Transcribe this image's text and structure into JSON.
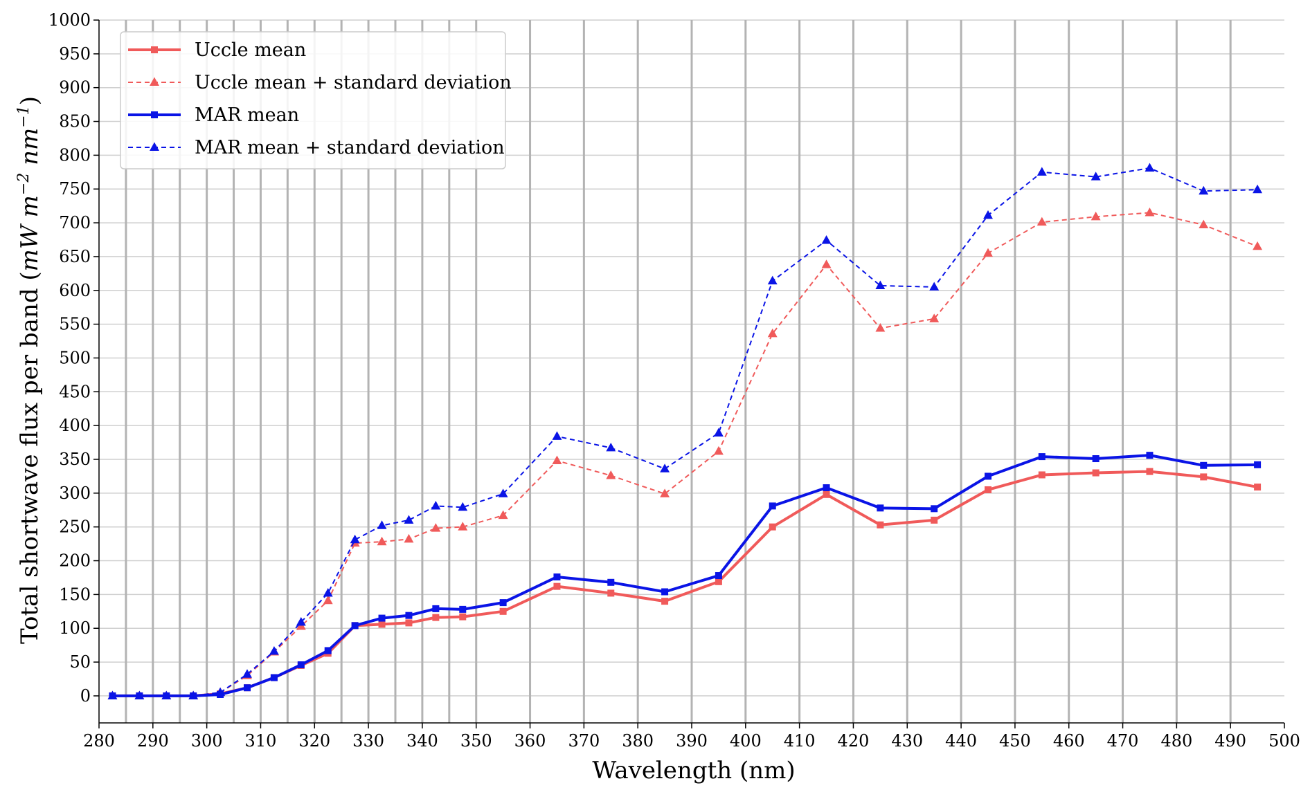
{
  "chart_data": {
    "type": "line",
    "xlabel": "Wavelength (nm)",
    "ylabel": "Total shortwave flux per band (mW m^-2 nm^-1)",
    "ylabel_parts": {
      "prefix": "Total shortwave flux per band (",
      "m1": "mW m",
      "e1": "−2",
      "m2": " nm",
      "e2": "−1",
      "suffix": ")"
    },
    "xlim": [
      280,
      500
    ],
    "ylim": [
      -40,
      1000
    ],
    "x_ticks": [
      280,
      290,
      300,
      310,
      320,
      330,
      340,
      350,
      360,
      370,
      380,
      390,
      400,
      410,
      420,
      430,
      440,
      450,
      460,
      470,
      480,
      490,
      500
    ],
    "y_ticks": [
      0,
      50,
      100,
      150,
      200,
      250,
      300,
      350,
      400,
      450,
      500,
      550,
      600,
      650,
      700,
      750,
      800,
      850,
      900,
      950,
      1000
    ],
    "band_edges": [
      285,
      290,
      295,
      300,
      305,
      310,
      315,
      320,
      325,
      330,
      335,
      340,
      345,
      350,
      360,
      370,
      380,
      390,
      400,
      410,
      420,
      430,
      440,
      450,
      460,
      470,
      480,
      490
    ],
    "grid": true,
    "legend_position": "top-left",
    "x": [
      282.5,
      287.5,
      292.5,
      297.5,
      302.5,
      307.5,
      312.5,
      317.5,
      322.5,
      327.5,
      332.5,
      337.5,
      342.5,
      347.5,
      355,
      365,
      375,
      385,
      395,
      405,
      415,
      425,
      435,
      445,
      455,
      465,
      475,
      485,
      495
    ],
    "series": [
      {
        "name": "Uccle mean",
        "color": "#f05a5a",
        "style": "solid",
        "marker": "square",
        "values": [
          0,
          0,
          0,
          0,
          3,
          12,
          27,
          45,
          63,
          104,
          106,
          108,
          116,
          117,
          125,
          162,
          152,
          140,
          169,
          250,
          298,
          253,
          260,
          305,
          327,
          330,
          332,
          324,
          309
        ]
      },
      {
        "name": "Uccle mean + standard deviation",
        "color": "#f05a5a",
        "style": "dashed",
        "marker": "triangle",
        "values": [
          0,
          0,
          0,
          0,
          5,
          30,
          65,
          103,
          141,
          226,
          228,
          232,
          248,
          250,
          267,
          348,
          326,
          299,
          362,
          536,
          638,
          544,
          558,
          655,
          701,
          709,
          715,
          697,
          665
        ]
      },
      {
        "name": "MAR mean",
        "color": "#0a14e6",
        "style": "solid",
        "marker": "square",
        "values": [
          0,
          0,
          0,
          0,
          2,
          12,
          27,
          46,
          67,
          104,
          115,
          119,
          129,
          128,
          138,
          176,
          168,
          154,
          178,
          281,
          308,
          278,
          277,
          325,
          354,
          351,
          356,
          341,
          342
        ]
      },
      {
        "name": "MAR mean + standard deviation",
        "color": "#0a14e6",
        "style": "dashed",
        "marker": "triangle",
        "values": [
          0,
          0,
          0,
          0,
          5,
          32,
          66,
          109,
          152,
          231,
          252,
          260,
          281,
          279,
          299,
          384,
          367,
          336,
          389,
          614,
          674,
          607,
          605,
          711,
          775,
          768,
          781,
          747,
          749
        ]
      }
    ]
  }
}
